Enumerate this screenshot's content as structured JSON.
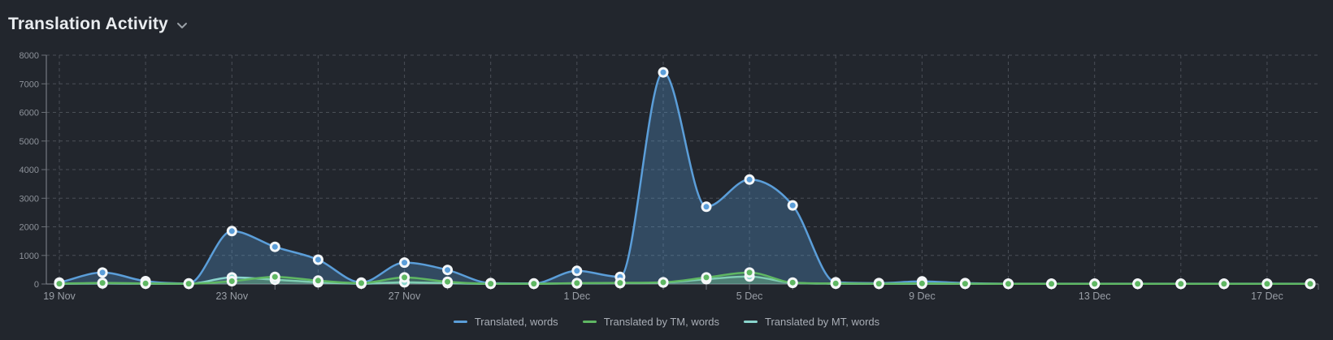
{
  "header": {
    "title": "Translation Activity"
  },
  "colors": {
    "background": "#22262d",
    "title_text": "#e9ecef",
    "axis_line": "#858a92",
    "tick_mark": "#6a6f76",
    "grid_line": "#4a4f57",
    "y_label_text": "#8d929a",
    "x_label_text": "#999ea6",
    "legend_text": "#a9aeb6",
    "marker_ring": "#f4f7f9"
  },
  "chart_data": {
    "type": "area",
    "title": "Translation Activity",
    "x": [
      "19 Nov",
      "20 Nov",
      "21 Nov",
      "22 Nov",
      "23 Nov",
      "24 Nov",
      "25 Nov",
      "26 Nov",
      "27 Nov",
      "28 Nov",
      "29 Nov",
      "30 Nov",
      "1 Dec",
      "2 Dec",
      "3 Dec",
      "4 Dec",
      "5 Dec",
      "6 Dec",
      "7 Dec",
      "8 Dec",
      "9 Dec",
      "10 Dec",
      "11 Dec",
      "12 Dec",
      "13 Dec",
      "14 Dec",
      "15 Dec",
      "16 Dec",
      "17 Dec",
      "18 Dec"
    ],
    "x_label_every": 4,
    "grid_x_every": 2,
    "ylim": [
      0,
      8000
    ],
    "y_tick_step": 1000,
    "grid": true,
    "legend_position": "bottom",
    "series": [
      {
        "name": "Translated, words",
        "color": "#5b9ed9",
        "fill": "rgba(91,158,217,0.30)",
        "values": [
          50,
          400,
          100,
          20,
          1850,
          1300,
          850,
          50,
          750,
          490,
          30,
          20,
          460,
          250,
          7400,
          2700,
          3650,
          2750,
          60,
          30,
          90,
          30,
          10,
          10,
          10,
          10,
          10,
          10,
          10,
          10
        ]
      },
      {
        "name": "Translated by TM, words",
        "color": "#5fb763",
        "fill": "rgba(95,183,99,0.25)",
        "values": [
          10,
          40,
          20,
          10,
          100,
          250,
          120,
          30,
          230,
          80,
          10,
          10,
          30,
          40,
          60,
          230,
          400,
          50,
          20,
          10,
          20,
          10,
          5,
          5,
          5,
          5,
          5,
          5,
          5,
          5
        ]
      },
      {
        "name": "Translated by MT, words",
        "color": "#8ad5cd",
        "fill": "rgba(138,213,205,0.25)",
        "values": [
          5,
          20,
          10,
          5,
          230,
          150,
          60,
          15,
          60,
          30,
          5,
          5,
          20,
          30,
          50,
          170,
          260,
          40,
          10,
          5,
          10,
          5,
          5,
          5,
          5,
          5,
          5,
          5,
          5,
          5
        ]
      }
    ]
  }
}
